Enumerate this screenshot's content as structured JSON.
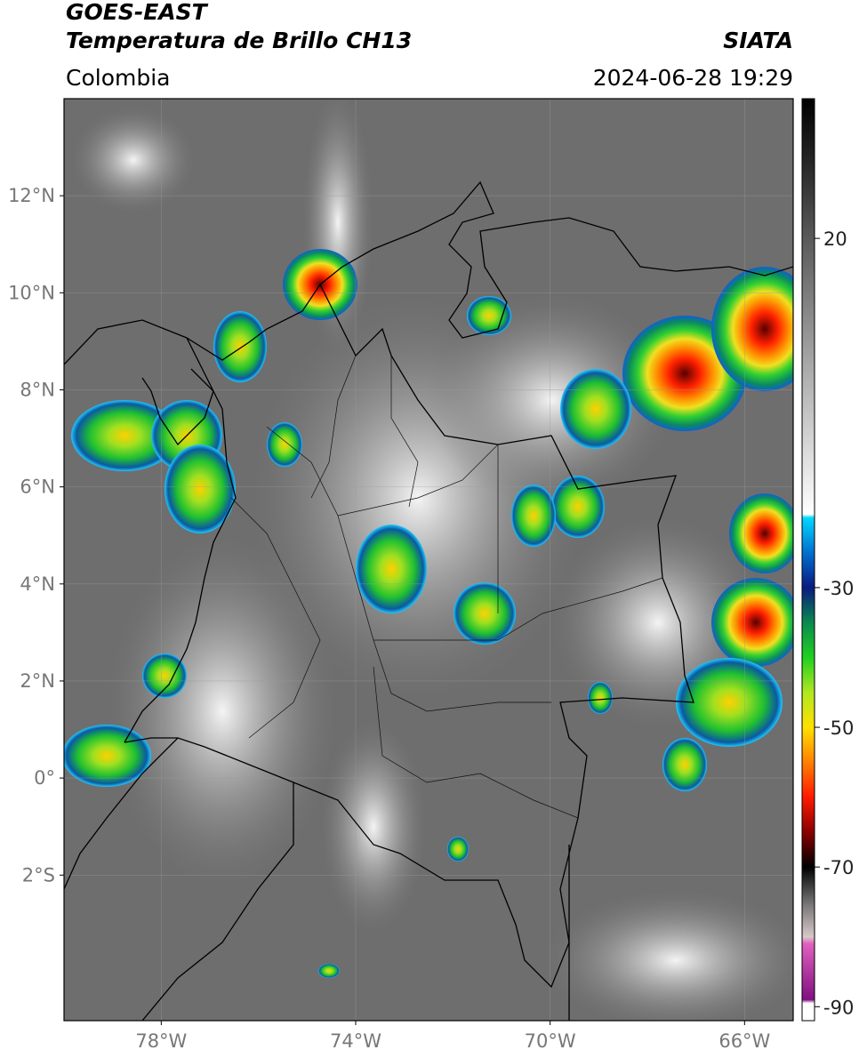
{
  "header": {
    "title": "GOES-EAST",
    "subtitle": "Temperatura de Brillo CH13",
    "source": "SIATA",
    "region": "Colombia",
    "datetime": "2024-06-28 19:29"
  },
  "map": {
    "lonlim": [
      -80,
      -65
    ],
    "latlim": [
      -5,
      14
    ],
    "lon_ticks": [
      {
        "value": -78,
        "label": "78°W"
      },
      {
        "value": -74,
        "label": "74°W"
      },
      {
        "value": -70,
        "label": "70°W"
      },
      {
        "value": -66,
        "label": "66°W"
      }
    ],
    "lat_ticks": [
      {
        "value": 12,
        "label": "12°N"
      },
      {
        "value": 10,
        "label": "10°N"
      },
      {
        "value": 8,
        "label": "8°N"
      },
      {
        "value": 6,
        "label": "6°N"
      },
      {
        "value": 4,
        "label": "4°N"
      },
      {
        "value": 2,
        "label": "2°N"
      },
      {
        "value": 0,
        "label": "0°"
      },
      {
        "value": -2,
        "label": "2°S"
      }
    ]
  },
  "colorbar": {
    "lim": [
      -92,
      40
    ],
    "ticks": [
      20,
      -30,
      -50,
      -70,
      -90
    ],
    "stops": [
      {
        "value": 40,
        "color": "#000000"
      },
      {
        "value": 30,
        "color": "#2a2a2a"
      },
      {
        "value": 20,
        "color": "#5a5a5a"
      },
      {
        "value": 0,
        "color": "#b0b0b0"
      },
      {
        "value": -19.5,
        "color": "#ffffff"
      },
      {
        "value": -20,
        "color": "#00d8ff"
      },
      {
        "value": -25,
        "color": "#0070d0"
      },
      {
        "value": -30,
        "color": "#0a1a80"
      },
      {
        "value": -35,
        "color": "#0a8a50"
      },
      {
        "value": -40,
        "color": "#20d020"
      },
      {
        "value": -45,
        "color": "#b0e820"
      },
      {
        "value": -50,
        "color": "#ffe000"
      },
      {
        "value": -55,
        "color": "#ff8000"
      },
      {
        "value": -60,
        "color": "#ff1a00"
      },
      {
        "value": -65,
        "color": "#8a0000"
      },
      {
        "value": -70,
        "color": "#000000"
      },
      {
        "value": -75,
        "color": "#707070"
      },
      {
        "value": -80,
        "color": "#d8c8c8"
      },
      {
        "value": -81,
        "color": "#e060c0"
      },
      {
        "value": -89,
        "color": "#801080"
      },
      {
        "value": -89.5,
        "color": "#ffffff"
      },
      {
        "value": -92,
        "color": "#ffffff"
      }
    ]
  }
}
